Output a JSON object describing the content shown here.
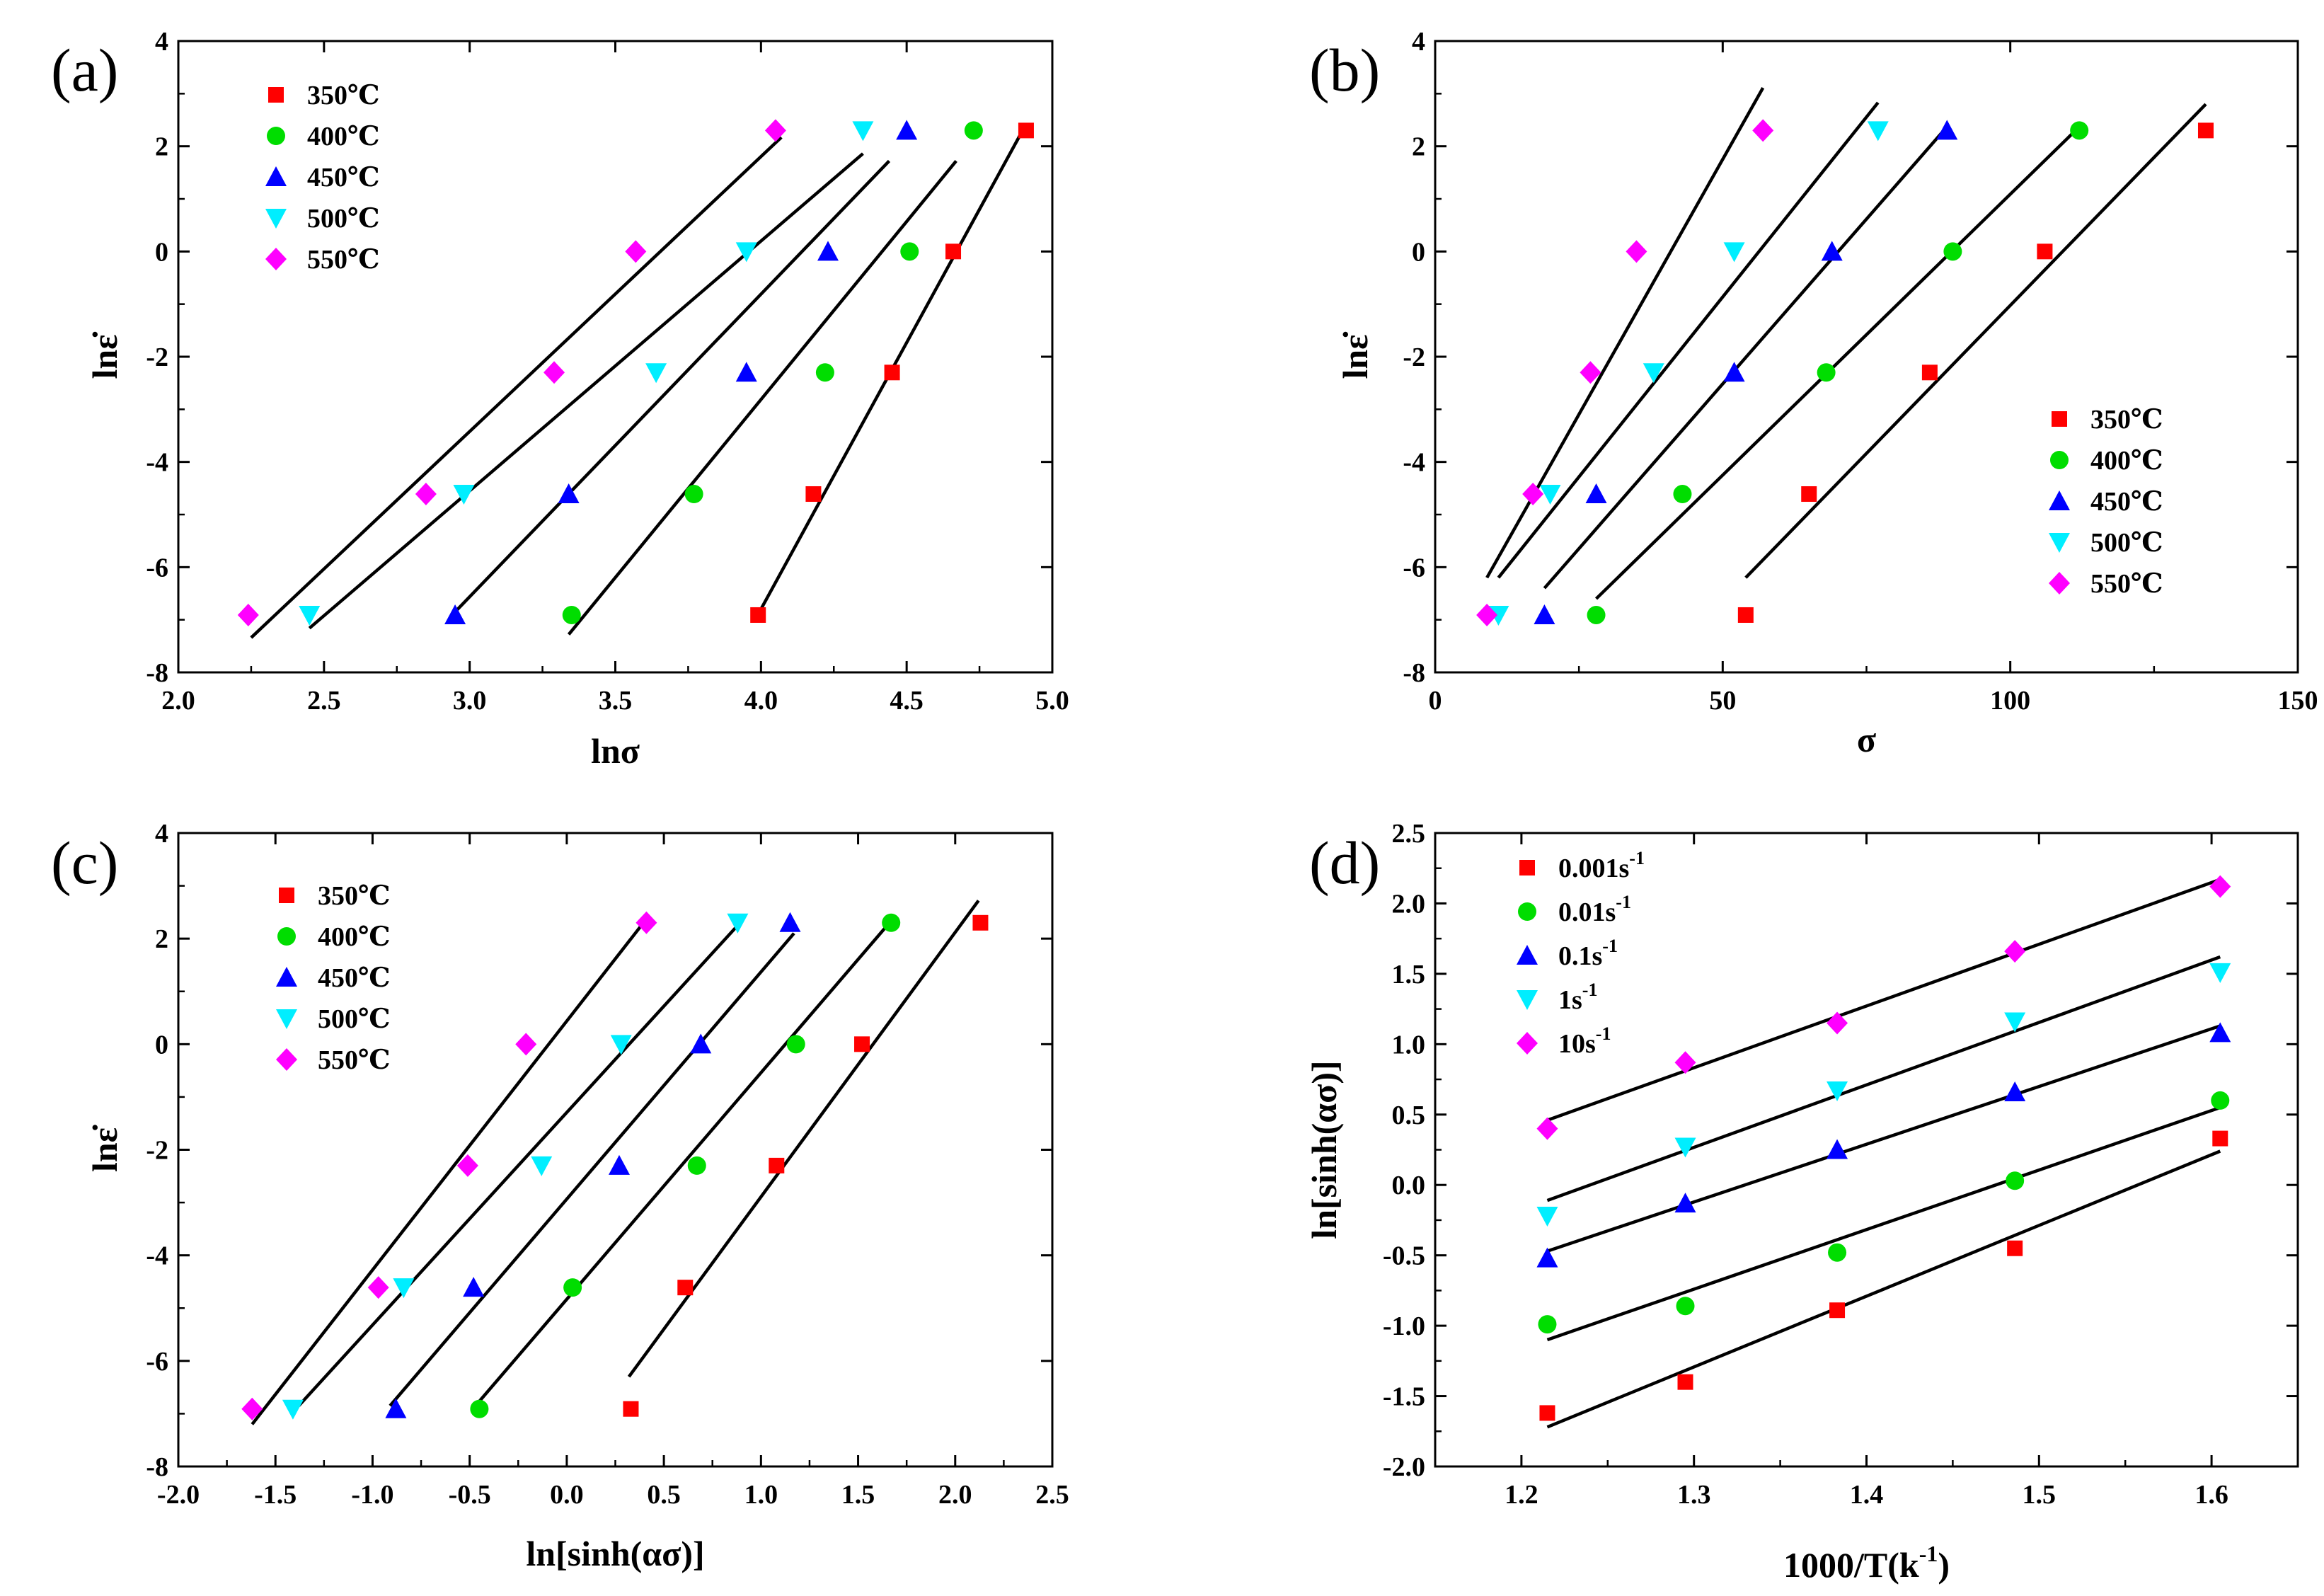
{
  "colors": {
    "series": [
      "#ff0000",
      "#00dd00",
      "#0000ff",
      "#00eeff",
      "#ff00ff"
    ],
    "fit_line": "#000000",
    "axes": "#000000"
  },
  "markers": [
    "square",
    "circle",
    "triangle-up",
    "triangle-down",
    "diamond"
  ],
  "chart_data": [
    {
      "type": "scatter",
      "panel_label": "(a)",
      "xlabel": "lnσ",
      "ylabel": "lnε̇",
      "xlim": [
        2.0,
        5.0
      ],
      "ylim": [
        -8,
        4
      ],
      "xticks": [
        "2.0",
        "2.5",
        "3.0",
        "3.5",
        "4.0",
        "4.5",
        "5.0"
      ],
      "yticks": [
        "-8",
        "-6",
        "-4",
        "-2",
        "0",
        "2",
        "4"
      ],
      "legend_position": "top-left",
      "series": [
        {
          "name": "350℃",
          "x": [
            3.99,
            4.18,
            4.45,
            4.66,
            4.91
          ],
          "y": [
            -6.91,
            -4.61,
            -2.3,
            0.0,
            2.3
          ],
          "fit": [
            [
              3.98,
              -7.0
            ],
            [
              4.9,
              2.32
            ]
          ]
        },
        {
          "name": "400℃",
          "x": [
            3.35,
            3.77,
            4.22,
            4.51,
            4.73
          ],
          "y": [
            -6.91,
            -4.61,
            -2.3,
            0.0,
            2.3
          ],
          "fit": [
            [
              3.34,
              -7.28
            ],
            [
              4.67,
              1.72
            ]
          ]
        },
        {
          "name": "450℃",
          "x": [
            2.95,
            3.34,
            3.95,
            4.23,
            4.5
          ],
          "y": [
            -6.91,
            -4.61,
            -2.3,
            0.0,
            2.3
          ],
          "fit": [
            [
              2.95,
              -6.85
            ],
            [
              4.44,
              1.72
            ]
          ]
        },
        {
          "name": "500℃",
          "x": [
            2.45,
            2.98,
            3.64,
            3.95,
            4.35
          ],
          "y": [
            -6.91,
            -4.61,
            -2.3,
            0.0,
            2.3
          ],
          "fit": [
            [
              2.45,
              -7.16
            ],
            [
              4.35,
              1.86
            ]
          ]
        },
        {
          "name": "550℃",
          "x": [
            2.24,
            2.85,
            3.29,
            3.57,
            4.05
          ],
          "y": [
            -6.91,
            -4.61,
            -2.3,
            0.0,
            2.3
          ],
          "fit": [
            [
              2.25,
              -7.34
            ],
            [
              4.07,
              2.17
            ]
          ]
        }
      ]
    },
    {
      "type": "scatter",
      "panel_label": "(b)",
      "xlabel": "σ",
      "ylabel": "lnε̇",
      "xlim": [
        0,
        150
      ],
      "ylim": [
        -8,
        4
      ],
      "xticks": [
        "0",
        "50",
        "100",
        "150"
      ],
      "yticks": [
        "-8",
        "-6",
        "-4",
        "-2",
        "0",
        "2",
        "4"
      ],
      "legend_position": "bottom-right",
      "series": [
        {
          "name": "350℃",
          "x": [
            54,
            65,
            86,
            106,
            134
          ],
          "y": [
            -6.91,
            -4.61,
            -2.3,
            0.0,
            2.3
          ],
          "fit": [
            [
              54,
              -6.2
            ],
            [
              134,
              2.8
            ]
          ]
        },
        {
          "name": "400℃",
          "x": [
            28,
            43,
            68,
            90,
            112
          ],
          "y": [
            -6.91,
            -4.61,
            -2.3,
            0.0,
            2.3
          ],
          "fit": [
            [
              28,
              -6.6
            ],
            [
              112,
              2.37
            ]
          ]
        },
        {
          "name": "450℃",
          "x": [
            19,
            28,
            52,
            69,
            89
          ],
          "y": [
            -6.91,
            -4.61,
            -2.3,
            0.0,
            2.3
          ],
          "fit": [
            [
              19,
              -6.4
            ],
            [
              89,
              2.37
            ]
          ]
        },
        {
          "name": "500℃",
          "x": [
            11,
            20,
            38,
            52,
            77
          ],
          "y": [
            -6.91,
            -4.61,
            -2.3,
            0.0,
            2.3
          ],
          "fit": [
            [
              11,
              -6.2
            ],
            [
              77,
              2.83
            ]
          ]
        },
        {
          "name": "550℃",
          "x": [
            9,
            17,
            27,
            35,
            57
          ],
          "y": [
            -6.91,
            -4.61,
            -2.3,
            0.0,
            2.3
          ],
          "fit": [
            [
              9,
              -6.2
            ],
            [
              57,
              3.11
            ]
          ]
        }
      ]
    },
    {
      "type": "scatter",
      "panel_label": "(c)",
      "xlabel": "ln[sinh(ασ)]",
      "ylabel": "lnε̇",
      "xlim": [
        -2.0,
        2.5
      ],
      "ylim": [
        -8,
        4
      ],
      "xticks": [
        "-2.0",
        "-1.5",
        "-1.0",
        "-0.5",
        "0.0",
        "0.5",
        "1.0",
        "1.5",
        "2.0",
        "2.5"
      ],
      "yticks": [
        "-8",
        "-6",
        "-4",
        "-2",
        "0",
        "2",
        "4"
      ],
      "legend_position": "top-left",
      "series": [
        {
          "name": "350℃",
          "x": [
            0.33,
            0.61,
            1.08,
            1.52,
            2.13
          ],
          "y": [
            -6.91,
            -4.61,
            -2.3,
            0.0,
            2.3
          ],
          "fit": [
            [
              0.32,
              -6.3
            ],
            [
              2.12,
              2.72
            ]
          ]
        },
        {
          "name": "400℃",
          "x": [
            -0.45,
            0.03,
            0.67,
            1.18,
            1.67
          ],
          "y": [
            -6.91,
            -4.61,
            -2.3,
            0.0,
            2.3
          ],
          "fit": [
            [
              -0.47,
              -6.85
            ],
            [
              1.65,
              2.25
            ]
          ]
        },
        {
          "name": "450℃",
          "x": [
            -0.88,
            -0.48,
            0.27,
            0.69,
            1.15
          ],
          "y": [
            -6.91,
            -4.61,
            -2.3,
            0.0,
            2.3
          ],
          "fit": [
            [
              -0.91,
              -6.85
            ],
            [
              1.17,
              2.1
            ]
          ]
        },
        {
          "name": "500℃",
          "x": [
            -1.41,
            -0.84,
            -0.13,
            0.28,
            0.88
          ],
          "y": [
            -6.91,
            -4.61,
            -2.3,
            0.0,
            2.3
          ],
          "fit": [
            [
              -1.38,
              -6.85
            ],
            [
              0.88,
              2.25
            ]
          ]
        },
        {
          "name": "550℃",
          "x": [
            -1.62,
            -0.97,
            -0.51,
            -0.21,
            0.41
          ],
          "y": [
            -6.91,
            -4.61,
            -2.3,
            0.0,
            2.3
          ],
          "fit": [
            [
              -1.62,
              -7.2
            ],
            [
              0.38,
              2.23
            ]
          ]
        }
      ]
    },
    {
      "type": "scatter",
      "panel_label": "(d)",
      "xlabel": "1000/T(k",
      "xlabel_sup": "-1",
      "xlabel_tail": ")",
      "ylabel": "ln[sinh(ασ)]",
      "xlim": [
        1.15,
        1.65
      ],
      "ylim": [
        -2.0,
        2.5
      ],
      "xticks": [
        "1.2",
        "1.3",
        "1.4",
        "1.5",
        "1.6"
      ],
      "yticks": [
        "-2.0",
        "-1.5",
        "-1.0",
        "-0.5",
        "0.0",
        "0.5",
        "1.0",
        "1.5",
        "2.0",
        "2.5"
      ],
      "legend_position": "top-left",
      "series": [
        {
          "name": "0.001s",
          "name_sup": "-1",
          "x": [
            1.215,
            1.295,
            1.383,
            1.486,
            1.605
          ],
          "y": [
            -1.62,
            -1.4,
            -0.89,
            -0.45,
            0.33
          ],
          "fit": [
            [
              1.215,
              -1.72
            ],
            [
              1.605,
              0.24
            ]
          ]
        },
        {
          "name": "0.01s",
          "name_sup": "-1",
          "x": [
            1.215,
            1.295,
            1.383,
            1.486,
            1.605
          ],
          "y": [
            -0.99,
            -0.86,
            -0.48,
            0.03,
            0.6
          ],
          "fit": [
            [
              1.215,
              -1.1
            ],
            [
              1.605,
              0.55
            ]
          ]
        },
        {
          "name": "0.1s",
          "name_sup": "-1",
          "x": [
            1.215,
            1.295,
            1.383,
            1.486,
            1.605
          ],
          "y": [
            -0.52,
            -0.13,
            0.25,
            0.66,
            1.08
          ],
          "fit": [
            [
              1.215,
              -0.47
            ],
            [
              1.605,
              1.13
            ]
          ]
        },
        {
          "name": "1s",
          "name_sup": "-1",
          "x": [
            1.215,
            1.295,
            1.383,
            1.486,
            1.605
          ],
          "y": [
            -0.22,
            0.27,
            0.67,
            1.16,
            1.51
          ],
          "fit": [
            [
              1.215,
              -0.11
            ],
            [
              1.605,
              1.62
            ]
          ]
        },
        {
          "name": "10s",
          "name_sup": "-1",
          "x": [
            1.215,
            1.295,
            1.383,
            1.486,
            1.605
          ],
          "y": [
            0.4,
            0.87,
            1.15,
            1.66,
            2.12
          ],
          "fit": [
            [
              1.215,
              0.46
            ],
            [
              1.605,
              2.17
            ]
          ]
        }
      ]
    }
  ]
}
